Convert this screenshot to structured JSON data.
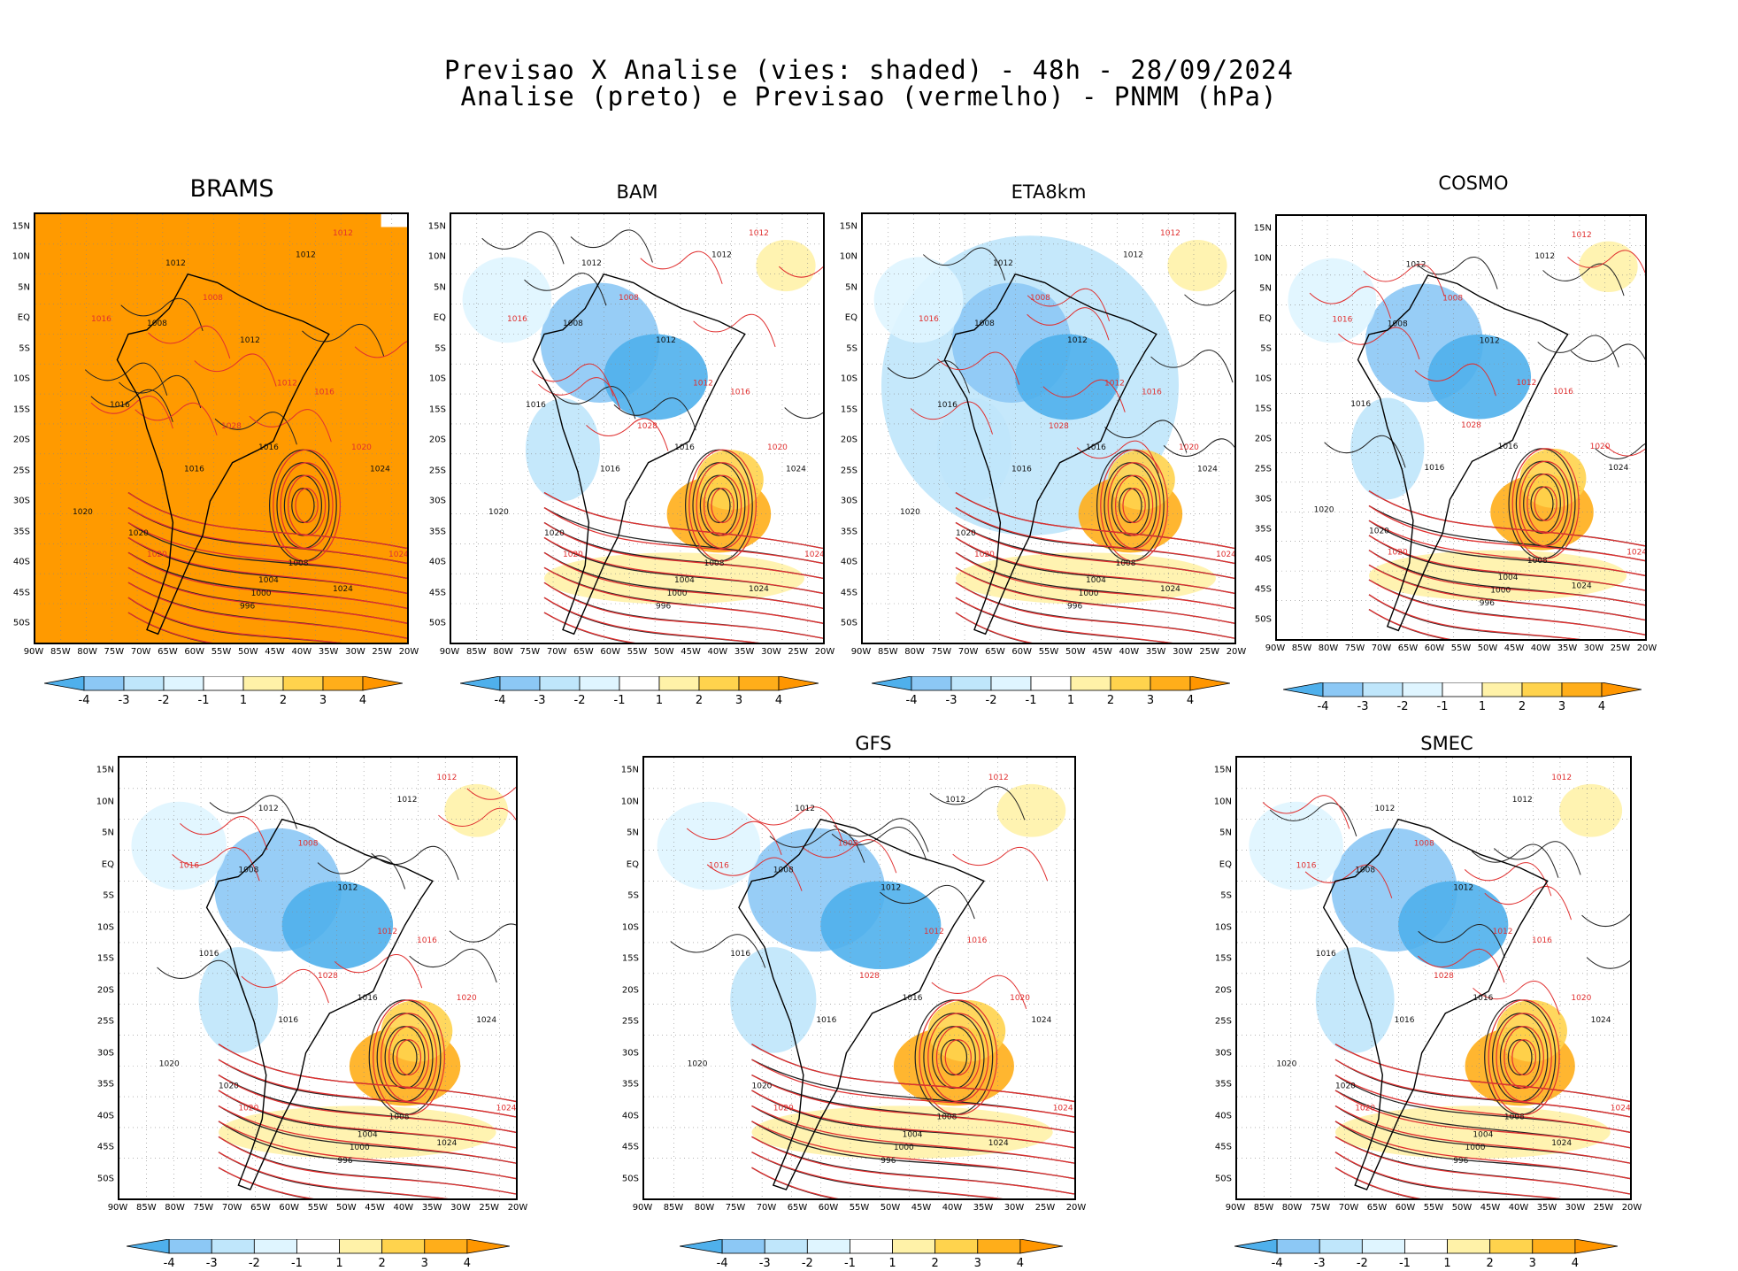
{
  "title": {
    "line1": "Previsao X Analise (vies: shaded) - 48h - 28/09/2024",
    "line2": "Analise (preto) e Previsao (vermelho) - PNMM (hPa)"
  },
  "axes": {
    "lat_labels": [
      "15N",
      "10N",
      "5N",
      "EQ",
      "5S",
      "10S",
      "15S",
      "20S",
      "25S",
      "30S",
      "35S",
      "40S",
      "45S",
      "50S"
    ],
    "lon_labels": [
      "90W",
      "85W",
      "80W",
      "75W",
      "70W",
      "65W",
      "60W",
      "55W",
      "50W",
      "45W",
      "40W",
      "35W",
      "30W",
      "25W",
      "20W"
    ]
  },
  "colorbar": {
    "ticks": [
      "-4",
      "-3",
      "-2",
      "-1",
      "1",
      "2",
      "3",
      "4"
    ],
    "colors": [
      "#4fb0ec",
      "#8cc8f5",
      "#bfe6fb",
      "#dff5ff",
      "#ffffff",
      "#fff2a8",
      "#ffd34d",
      "#ffae1a",
      "#ff9600"
    ]
  },
  "panels": [
    {
      "model": "BRAMS",
      "note": ""
    },
    {
      "model": "BAM",
      "note": ""
    },
    {
      "model": "ETA8km",
      "note": ""
    },
    {
      "model": "COSMO",
      "note": ""
    },
    {
      "model": "",
      "note": ""
    },
    {
      "model": "GFS",
      "note": ""
    },
    {
      "model": "SMEC",
      "note": ""
    }
  ],
  "isobars": {
    "black": [
      "1012",
      "1008",
      "1012",
      "1016",
      "1020",
      "1024",
      "1016",
      "1008",
      "1004",
      "1000",
      "996",
      "1012",
      "1016",
      "1020",
      "1024"
    ],
    "red": [
      "1012",
      "1008",
      "1016",
      "1020",
      "1024",
      "1028",
      "1020",
      "1016",
      "1012"
    ]
  }
}
